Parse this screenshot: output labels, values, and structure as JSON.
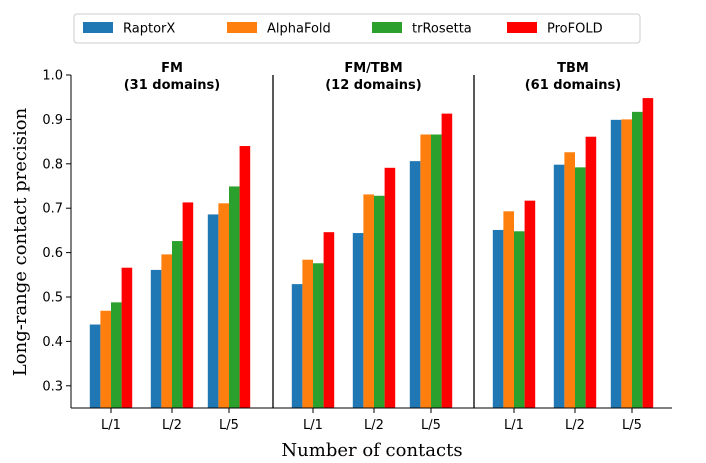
{
  "chart_data": {
    "type": "bar",
    "ylabel": "Long-range contact precision",
    "xlabel": "Number of contacts",
    "ylim": [
      0.25,
      1.0
    ],
    "yticks": [
      "0.3",
      "0.4",
      "0.5",
      "0.6",
      "0.7",
      "0.8",
      "0.9",
      "1.0"
    ],
    "legend": {
      "position": "top",
      "entries": [
        {
          "name": "RaptorX",
          "color": "#1f77b4"
        },
        {
          "name": "AlphaFold",
          "color": "#ff7f0e"
        },
        {
          "name": "trRosetta",
          "color": "#2ca02c"
        },
        {
          "name": "ProFOLD",
          "color": "#ff0000"
        }
      ]
    },
    "panels": [
      {
        "title_line1": "FM",
        "title_line2": "(31 domains)",
        "categories": [
          "L/1",
          "L/2",
          "L/5"
        ],
        "series": [
          {
            "name": "RaptorX",
            "values": [
              0.438,
              0.561,
              0.686
            ]
          },
          {
            "name": "AlphaFold",
            "values": [
              0.469,
              0.596,
              0.711
            ]
          },
          {
            "name": "trRosetta",
            "values": [
              0.488,
              0.626,
              0.749
            ]
          },
          {
            "name": "ProFOLD",
            "values": [
              0.566,
              0.713,
              0.84
            ]
          }
        ]
      },
      {
        "title_line1": "FM/TBM",
        "title_line2": "(12 domains)",
        "categories": [
          "L/1",
          "L/2",
          "L/5"
        ],
        "series": [
          {
            "name": "RaptorX",
            "values": [
              0.529,
              0.644,
              0.806
            ]
          },
          {
            "name": "AlphaFold",
            "values": [
              0.584,
              0.731,
              0.866
            ]
          },
          {
            "name": "trRosetta",
            "values": [
              0.576,
              0.728,
              0.866
            ]
          },
          {
            "name": "ProFOLD",
            "values": [
              0.646,
              0.791,
              0.913
            ]
          }
        ]
      },
      {
        "title_line1": "TBM",
        "title_line2": "(61 domains)",
        "categories": [
          "L/1",
          "L/2",
          "L/5"
        ],
        "series": [
          {
            "name": "RaptorX",
            "values": [
              0.651,
              0.798,
              0.899
            ]
          },
          {
            "name": "AlphaFold",
            "values": [
              0.693,
              0.826,
              0.9
            ]
          },
          {
            "name": "trRosetta",
            "values": [
              0.648,
              0.792,
              0.917
            ]
          },
          {
            "name": "ProFOLD",
            "values": [
              0.717,
              0.861,
              0.948
            ]
          }
        ]
      }
    ]
  }
}
